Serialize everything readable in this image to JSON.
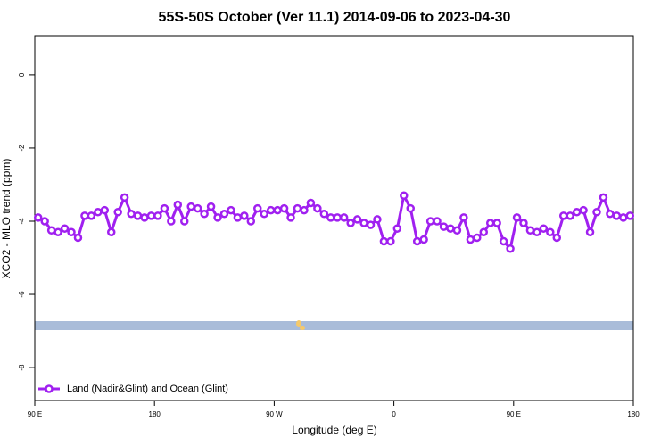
{
  "chart_data": {
    "type": "line",
    "title": "55S-50S October (Ver 11.1)   2014-09-06 to 2023-04-30",
    "x_label": "Longitude (deg E)",
    "y_label": "XCO2 - MLO trend (ppm)",
    "xlim": [
      90,
      540
    ],
    "ylim": [
      -8.9,
      1.07
    ],
    "xticks": [
      {
        "value": 90,
        "label": "90 E"
      },
      {
        "value": 180,
        "label": "180"
      },
      {
        "value": 270,
        "label": "90 W"
      },
      {
        "value": 360,
        "label": "0"
      },
      {
        "value": 450,
        "label": "90 E"
      },
      {
        "value": 540,
        "label": "180"
      }
    ],
    "yticks": [
      0,
      -2,
      -4,
      -6,
      -8
    ],
    "legend": "bottom-left",
    "x": [
      92.5,
      97.5,
      102.5,
      107.5,
      112.5,
      117.5,
      122.5,
      127.5,
      132.5,
      137.5,
      142.5,
      147.5,
      152.5,
      157.5,
      162.5,
      167.5,
      172.5,
      177.5,
      182.5,
      187.5,
      192.5,
      197.5,
      202.5,
      207.5,
      212.5,
      217.5,
      222.5,
      227.5,
      232.5,
      237.5,
      242.5,
      247.5,
      252.5,
      257.5,
      262.5,
      267.5,
      272.5,
      277.5,
      282.5,
      287.5,
      292.5,
      297.5,
      302.5,
      307.5,
      312.5,
      317.5,
      322.5,
      327.5,
      332.5,
      337.5,
      342.5,
      347.5,
      352.5,
      357.5,
      362.5,
      367.5,
      372.5,
      377.5,
      382.5,
      387.5,
      392.5,
      397.5,
      402.5,
      407.5,
      412.5,
      417.5,
      422.5,
      427.5,
      432.5,
      437.5,
      442.5,
      447.5,
      452.5,
      457.5,
      462.5,
      467.5,
      472.5,
      477.5,
      482.5,
      487.5,
      492.5,
      497.5,
      502.5,
      507.5,
      512.5,
      517.5,
      522.5,
      527.5,
      532.5,
      537.5
    ],
    "series": [
      {
        "name": "Land (Nadir&Glint) and Ocean (Glint)",
        "color": "#a020f0",
        "values": [
          -3.9,
          -4.0,
          -4.25,
          -4.3,
          -4.2,
          -4.3,
          -4.45,
          -3.85,
          -3.85,
          -3.75,
          -3.7,
          -4.3,
          -3.75,
          -3.35,
          -3.8,
          -3.85,
          -3.9,
          -3.85,
          -3.85,
          -3.65,
          -4.0,
          -3.55,
          -4.0,
          -3.6,
          -3.65,
          -3.8,
          -3.6,
          -3.9,
          -3.8,
          -3.7,
          -3.9,
          -3.85,
          -4.0,
          -3.65,
          -3.8,
          -3.7,
          -3.7,
          -3.65,
          -3.9,
          -3.65,
          -3.7,
          -3.5,
          -3.65,
          -3.8,
          -3.9,
          -3.9,
          -3.9,
          -4.05,
          -3.95,
          -4.05,
          -4.1,
          -3.95,
          -4.55,
          -4.55,
          -4.2,
          -3.3,
          -3.65,
          -4.55,
          -4.5,
          -4.0,
          -4.0,
          -4.15,
          -4.2,
          -4.25,
          -3.9,
          -4.5,
          -4.45,
          -4.3,
          -4.05,
          -4.05,
          -4.55,
          -4.75,
          -3.9,
          -4.05,
          -4.25,
          -4.3,
          -4.2,
          -4.3,
          -4.45,
          -3.85,
          -3.85,
          -3.75,
          -3.7,
          -4.3,
          -3.75,
          -3.35,
          -3.8,
          -3.85,
          -3.9,
          -3.85
        ]
      }
    ]
  }
}
